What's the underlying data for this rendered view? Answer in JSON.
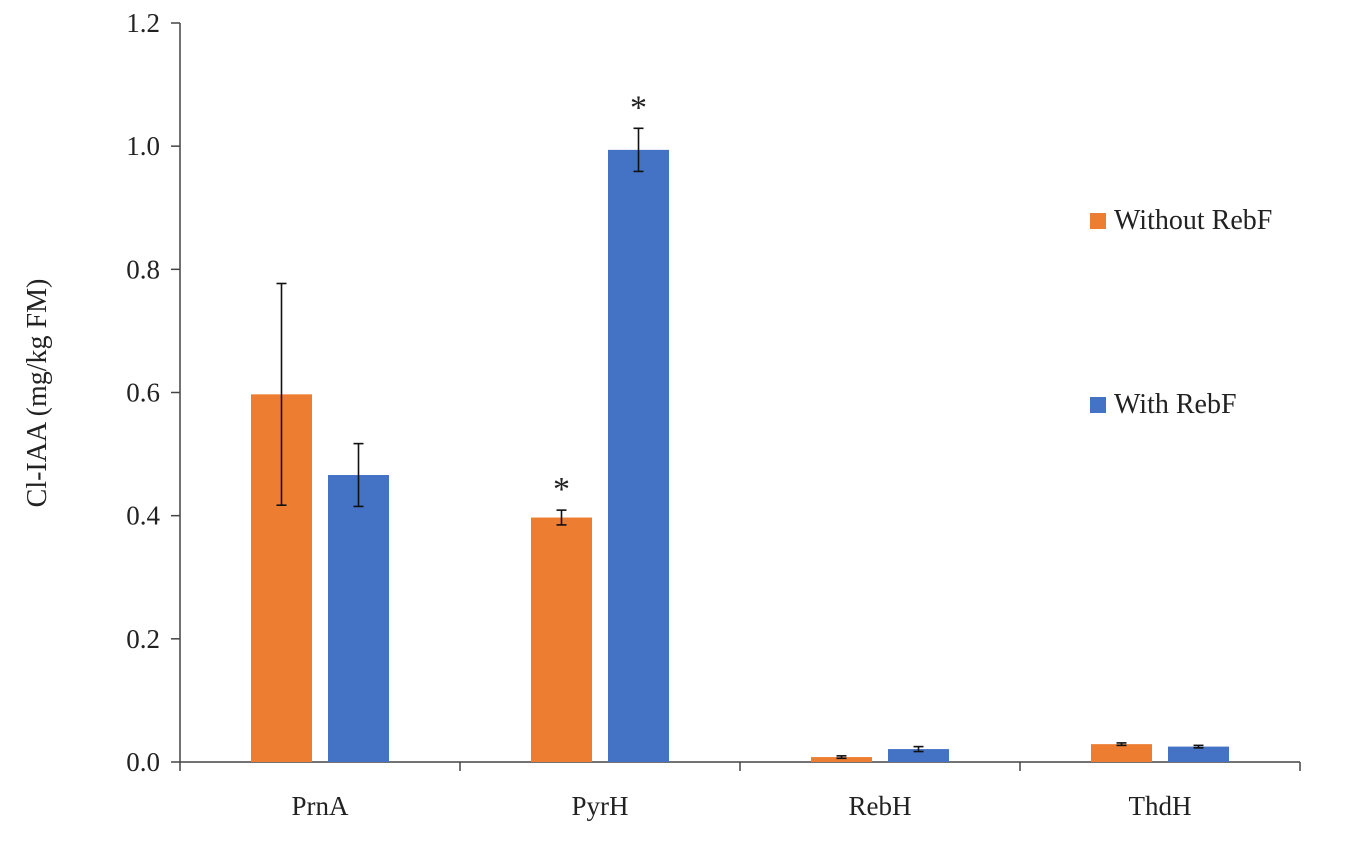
{
  "chart_data": {
    "type": "bar",
    "title": "",
    "xlabel": "",
    "ylabel": "Cl-IAA (mg/kg FM)",
    "ylim": [
      0,
      1.2
    ],
    "yticks": [
      "0.0",
      "0.2",
      "0.4",
      "0.6",
      "0.8",
      "1.0",
      "1.2"
    ],
    "categories": [
      "PrnA",
      "PyrH",
      "RebH",
      "ThdH"
    ],
    "series": [
      {
        "name": "Without RebF",
        "color": "#ED7D31",
        "values": [
          0.597,
          0.397,
          0.008,
          0.029
        ],
        "errors": [
          0.18,
          0.012,
          0.002,
          0.002
        ],
        "significant": [
          false,
          true,
          false,
          false
        ]
      },
      {
        "name": "With RebF",
        "color": "#4472C4",
        "values": [
          0.466,
          0.994,
          0.021,
          0.025
        ],
        "errors": [
          0.051,
          0.035,
          0.004,
          0.002
        ],
        "significant": [
          false,
          true,
          false,
          false
        ]
      }
    ],
    "significance_marker": "*",
    "grid": false,
    "legend_position": "right"
  }
}
